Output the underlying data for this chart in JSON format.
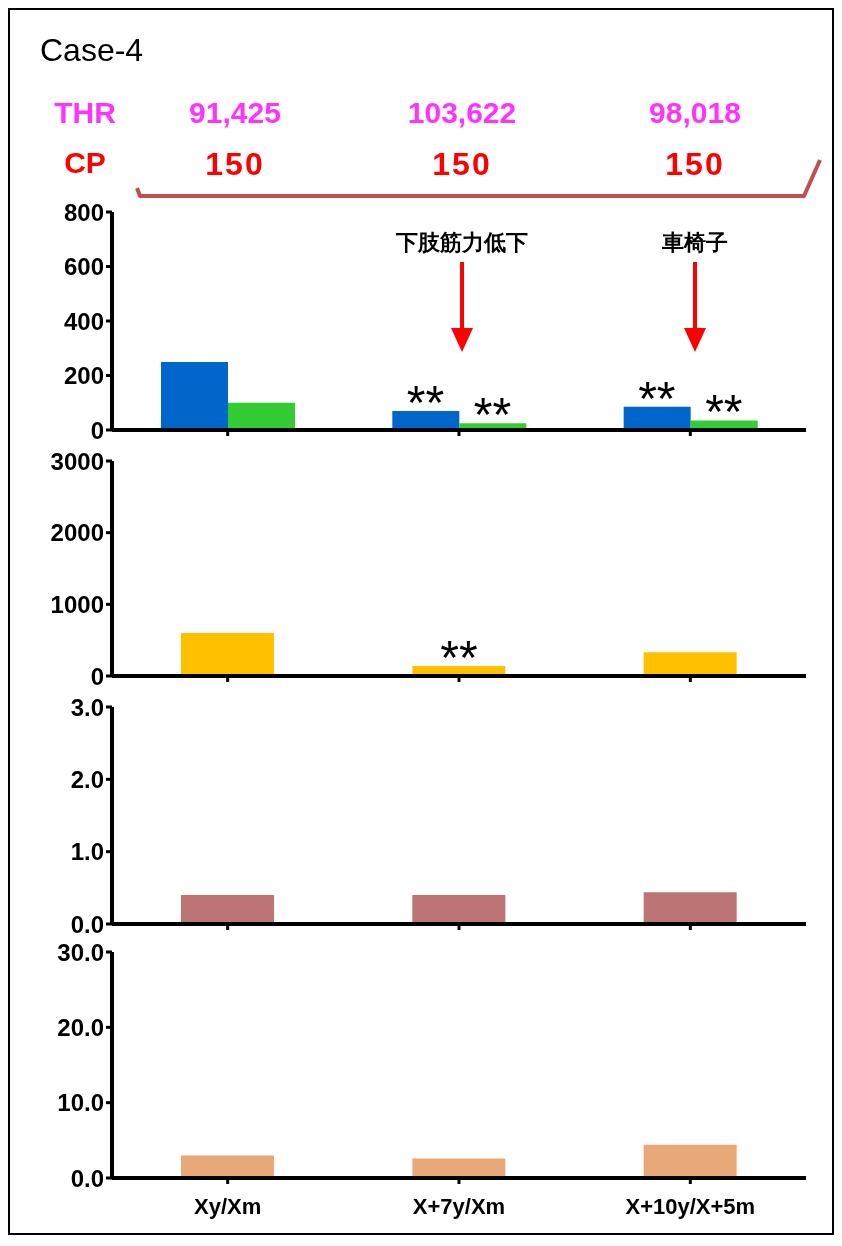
{
  "chart_data": [
    {
      "type": "bar",
      "title": "Case-4",
      "categories": [
        "Xy/Xm",
        "X+7y/Xm",
        "X+10y/X+5m"
      ],
      "series": [
        {
          "color": "#0066cc",
          "values": [
            250,
            70,
            85
          ]
        },
        {
          "color": "#33cc33",
          "values": [
            100,
            25,
            35
          ]
        }
      ],
      "ylim": [
        0,
        800
      ],
      "yticks": [
        0,
        200,
        400,
        600,
        800
      ],
      "tick_labels": "y",
      "annotations": [
        "THR",
        "91,425",
        "103,622",
        "98,018",
        "CP",
        "150",
        "150",
        "150",
        "下肢筋力低下",
        "車椅子",
        {
          "text": "**",
          "x": "X+7y/Xm",
          "y": 70
        },
        {
          "text": "**",
          "x": "X+7y/Xm",
          "y": 25
        },
        {
          "text": "**",
          "x": "X+10y/X+5m",
          "y": 85
        },
        {
          "text": "**",
          "x": "X+10y/X+5m",
          "y": 35
        }
      ]
    },
    {
      "type": "bar",
      "categories": [
        "Xy/Xm",
        "X+7y/Xm",
        "X+10y/X+5m"
      ],
      "values": [
        600,
        140,
        330
      ],
      "color": "#ffc000",
      "ylim": [
        0,
        3000
      ],
      "yticks": [
        0,
        1000,
        2000,
        3000
      ],
      "tick_labels": "y",
      "annotations": [
        {
          "text": "**",
          "x": "X+7y/Xm",
          "y": 140
        }
      ]
    },
    {
      "type": "bar",
      "categories": [
        "Xy/Xm",
        "X+7y/Xm",
        "X+10y/X+5m"
      ],
      "values": [
        0.4,
        0.4,
        0.44
      ],
      "color": "#bc7474",
      "ylim": [
        0,
        3
      ],
      "yticks": [
        {
          "value": 0,
          "label": "0.0"
        },
        {
          "value": 1,
          "label": "1.0"
        },
        {
          "value": 2,
          "label": "2.0"
        },
        {
          "value": 3,
          "label": "3.0"
        }
      ],
      "tick_labels": "y"
    },
    {
      "type": "bar",
      "categories": [
        "Xy/Xm",
        "X+7y/Xm",
        "X+10y/X+5m"
      ],
      "values": [
        3.0,
        2.6,
        4.4
      ],
      "color": "#e8a878",
      "ylim": [
        0,
        30
      ],
      "yticks": [
        {
          "value": 0,
          "label": "0.0"
        },
        {
          "value": 10,
          "label": "10.0"
        },
        {
          "value": 20,
          "label": "20.0"
        },
        {
          "value": 30,
          "label": "30.0"
        }
      ]
    }
  ]
}
